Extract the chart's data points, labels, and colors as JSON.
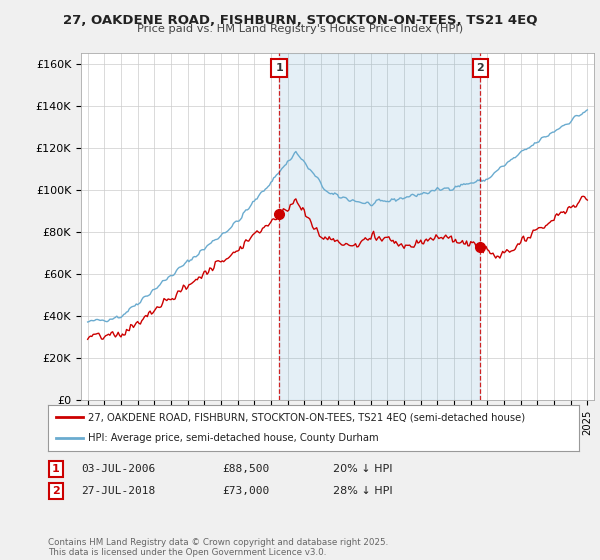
{
  "title1": "27, OAKDENE ROAD, FISHBURN, STOCKTON-ON-TEES, TS21 4EQ",
  "title2": "Price paid vs. HM Land Registry's House Price Index (HPI)",
  "ylabel_ticks": [
    0,
    20000,
    40000,
    60000,
    80000,
    100000,
    120000,
    140000,
    160000
  ],
  "ylabel_labels": [
    "£0",
    "£20K",
    "£40K",
    "£60K",
    "£80K",
    "£100K",
    "£120K",
    "£140K",
    "£160K"
  ],
  "ylim": [
    0,
    165000
  ],
  "xlim_years": [
    1994.6,
    2025.4
  ],
  "hpi_color": "#6aabcf",
  "hpi_fill_color": "#ddeef7",
  "price_color": "#cc0000",
  "sale1_year": 2006.5,
  "sale1_price": 88500,
  "sale2_year": 2018.58,
  "sale2_price": 73000,
  "vline1_year": 2006.5,
  "vline2_year": 2018.58,
  "legend_line1": "27, OAKDENE ROAD, FISHBURN, STOCKTON-ON-TEES, TS21 4EQ (semi-detached house)",
  "legend_line2": "HPI: Average price, semi-detached house, County Durham",
  "table_row1": [
    "1",
    "03-JUL-2006",
    "£88,500",
    "20% ↓ HPI"
  ],
  "table_row2": [
    "2",
    "27-JUL-2018",
    "£73,000",
    "28% ↓ HPI"
  ],
  "copyright": "Contains HM Land Registry data © Crown copyright and database right 2025.\nThis data is licensed under the Open Government Licence v3.0.",
  "background_color": "#f0f0f0",
  "plot_background": "#ffffff",
  "grid_color": "#cccccc"
}
